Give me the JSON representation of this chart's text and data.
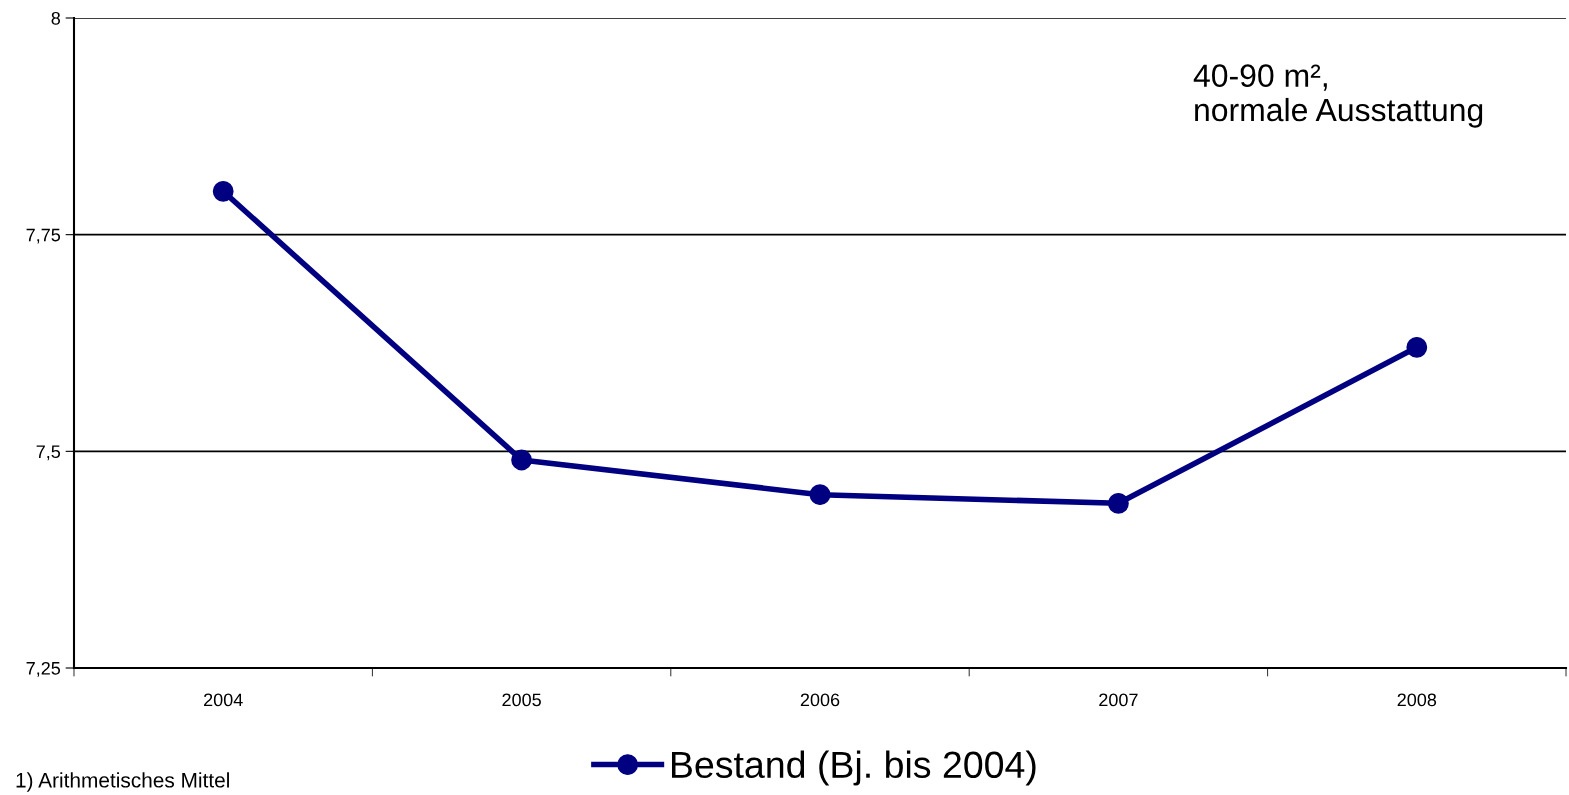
{
  "chart_data": {
    "type": "line",
    "categories": [
      "2004",
      "2005",
      "2006",
      "2007",
      "2008"
    ],
    "series": [
      {
        "name": "Bestand (Bj. bis 2004)",
        "color": "#000080",
        "values": [
          7.8,
          7.49,
          7.45,
          7.44,
          7.62
        ]
      }
    ],
    "ylim": [
      7.25,
      8
    ],
    "yticks": [
      {
        "value": 7.25,
        "label": "7,25"
      },
      {
        "value": 7.5,
        "label": "7,5"
      },
      {
        "value": 7.75,
        "label": "7,75"
      },
      8
    ],
    "grid": "y",
    "legend": "bottom",
    "marker": "circle",
    "line_style": "solid",
    "annotations": [
      "40-90 m²,\nnormale Ausstattung",
      "1) Arithmetisches Mittel"
    ]
  }
}
